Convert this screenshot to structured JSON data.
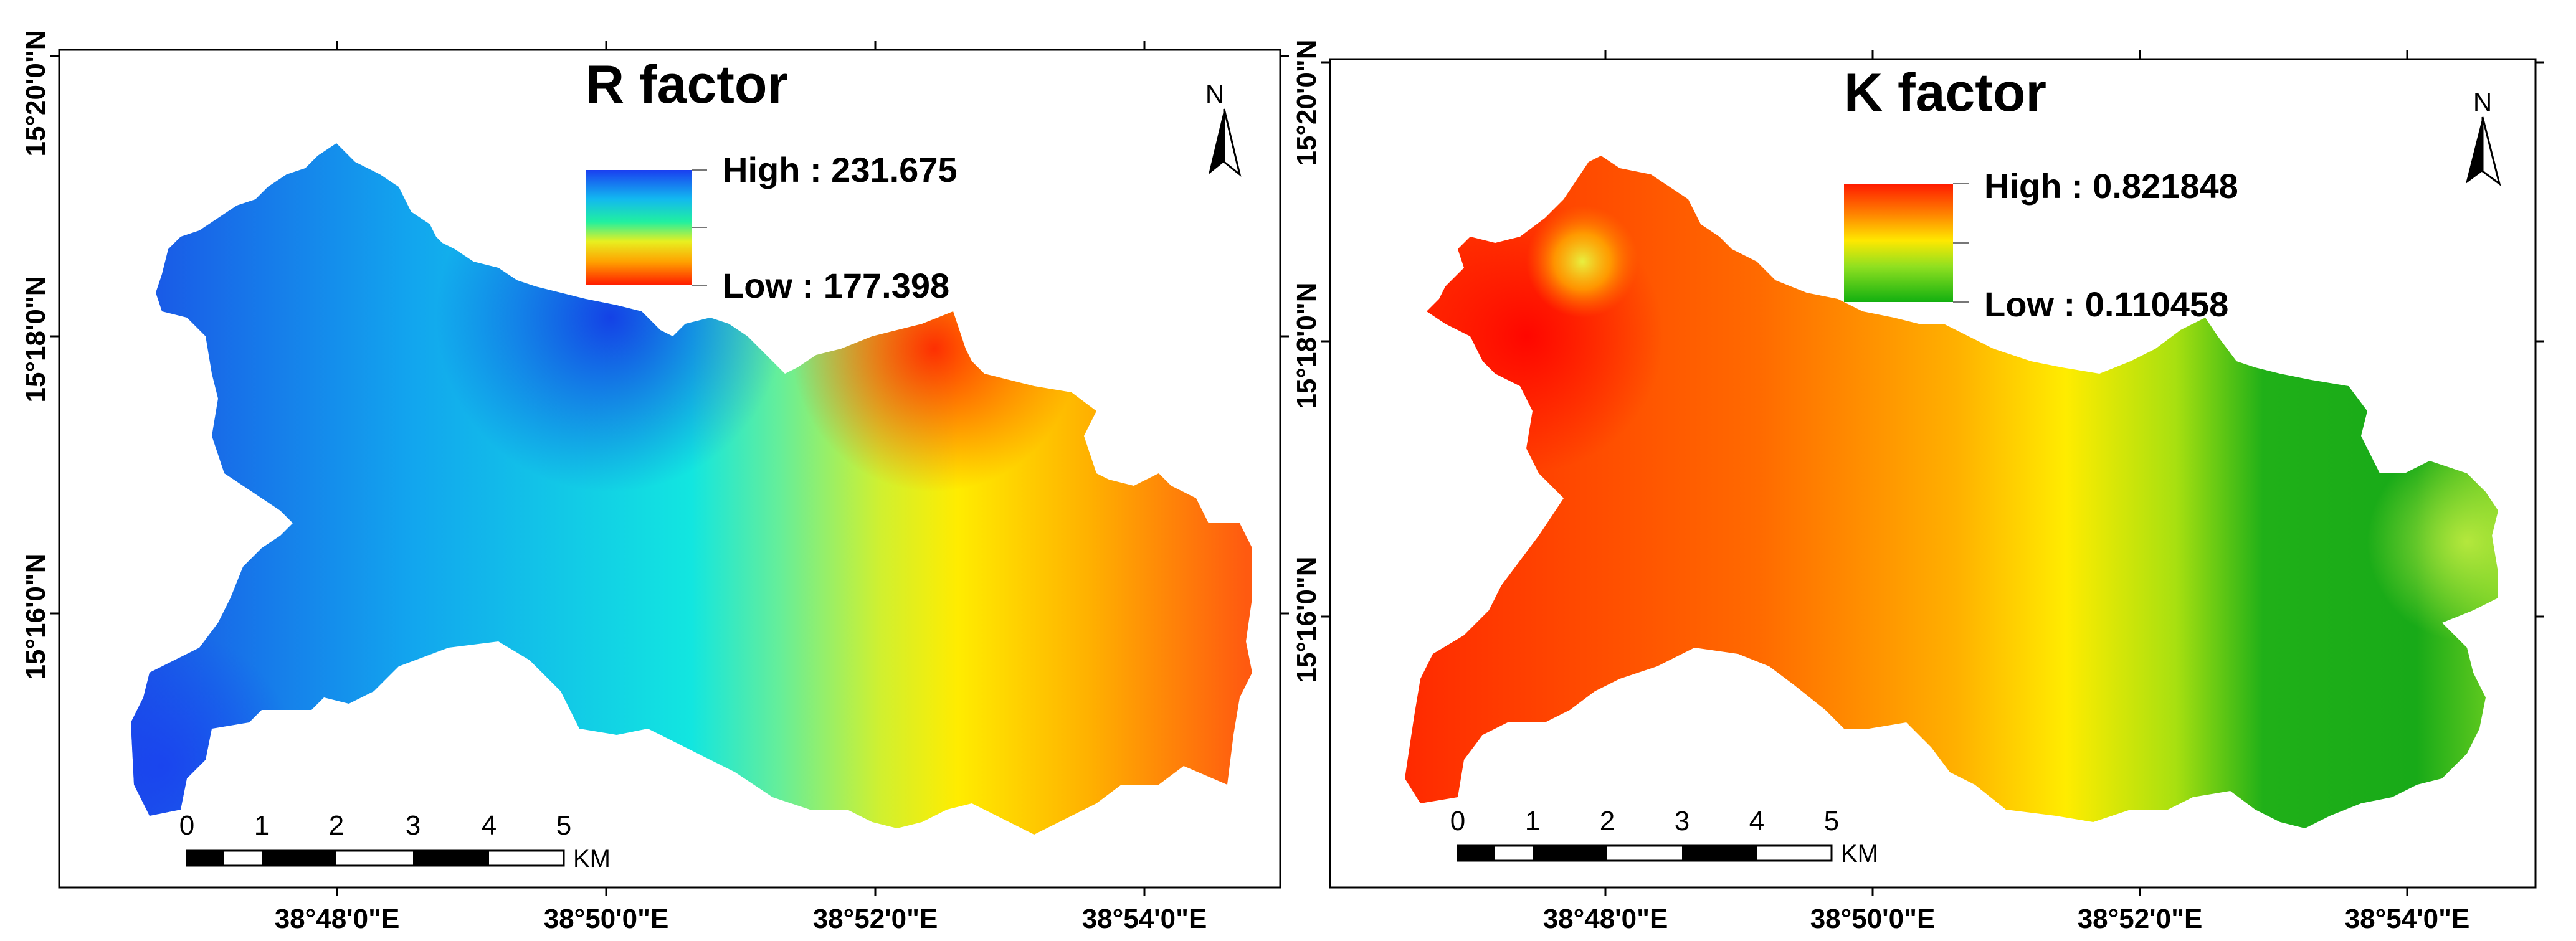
{
  "panels": [
    {
      "id": "r",
      "title": "R factor",
      "legend": {
        "high_label": "High : 231.675",
        "low_label": "Low : 177.398",
        "high_value": 231.675,
        "low_value": 177.398,
        "ramp_top_color": "#1a3ff0",
        "ramp_bottom_color": "#ff1a00"
      },
      "lat_labels": [
        "15°20'0\"N",
        "15°18'0\"N",
        "15°16'0\"N"
      ],
      "lon_labels": [
        "38°48'0\"E",
        "38°50'0\"E",
        "38°52'0\"E",
        "38°54'0\"E"
      ],
      "north_label": "N",
      "scalebar": {
        "numbers": [
          "0",
          "1",
          "2",
          "3",
          "4",
          "5"
        ],
        "unit": "KM"
      }
    },
    {
      "id": "k",
      "title": "K factor",
      "legend": {
        "high_label": "High : 0.821848",
        "low_label": "Low : 0.110458",
        "high_value": 0.821848,
        "low_value": 0.110458,
        "ramp_top_color": "#ff1a00",
        "ramp_bottom_color": "#12b010"
      },
      "lat_labels": [
        "15°20'0\"N",
        "15°18'0\"N",
        "15°16'0\"N"
      ],
      "lon_labels": [
        "38°48'0\"E",
        "38°50'0\"E",
        "38°52'0\"E",
        "38°54'0\"E"
      ],
      "north_label": "N",
      "scalebar": {
        "numbers": [
          "0",
          "1",
          "2",
          "3",
          "4",
          "5"
        ],
        "unit": "KM"
      }
    }
  ]
}
